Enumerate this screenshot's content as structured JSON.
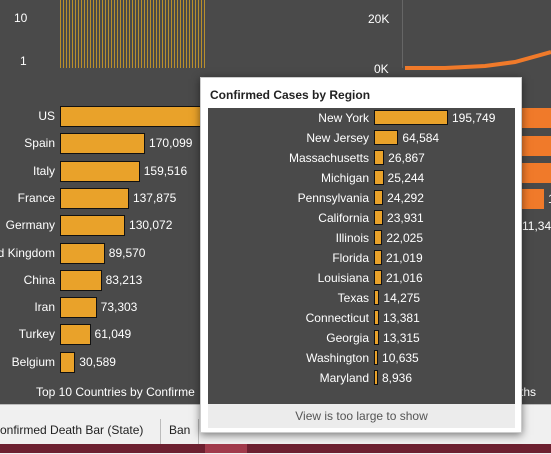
{
  "top_chart": {
    "left_ticks": [
      "10",
      "1"
    ],
    "right_ticks": [
      "20K",
      "0K"
    ]
  },
  "countries_chart": {
    "title": "Top 10 Countries by Confirme",
    "right_title_fragment": "ths",
    "right_value_fragment": "11,34",
    "right_value_fragment_2": "1"
  },
  "chart_data": [
    {
      "type": "bar",
      "title": "Top 10 Countries by Confirme",
      "categories": [
        "US",
        "Spain",
        "Italy",
        "France",
        "Germany",
        "d Kingdom",
        "China",
        "Iran",
        "Turkey",
        "Belgium"
      ],
      "values": [
        null,
        170099,
        159516,
        137875,
        130072,
        89570,
        83213,
        73303,
        61049,
        30589
      ],
      "labels": [
        "",
        "170,099",
        "159,516",
        "137,875",
        "130,072",
        "89,570",
        "83,213",
        "73,303",
        "61,049",
        "30,589"
      ],
      "color": "#e9a22a"
    },
    {
      "type": "bar",
      "title": "Confirmed Cases by Region",
      "categories": [
        "New York",
        "New Jersey",
        "Massachusetts",
        "Michigan",
        "Pennsylvania",
        "California",
        "Illinois",
        "Florida",
        "Louisiana",
        "Texas",
        "Connecticut",
        "Georgia",
        "Washington",
        "Maryland"
      ],
      "values": [
        195749,
        64584,
        26867,
        25244,
        24292,
        23931,
        22025,
        21019,
        21016,
        14275,
        13381,
        13315,
        10635,
        8936
      ],
      "labels": [
        "195,749",
        "64,584",
        "26,867",
        "25,244",
        "24,292",
        "23,931",
        "22,025",
        "21,019",
        "21,016",
        "14,275",
        "13,381",
        "13,315",
        "10,635",
        "8,936"
      ],
      "color": "#e9a22a"
    }
  ],
  "tooltip": {
    "title": "Confirmed Cases by Region",
    "footer": "View is too large to show"
  },
  "tabs": [
    {
      "label": "onfirmed Death Bar (State)"
    },
    {
      "label": "Ban"
    }
  ],
  "colors": {
    "bar": "#e9a22a",
    "orange": "#f07a2a",
    "background": "#4a4a4a"
  }
}
